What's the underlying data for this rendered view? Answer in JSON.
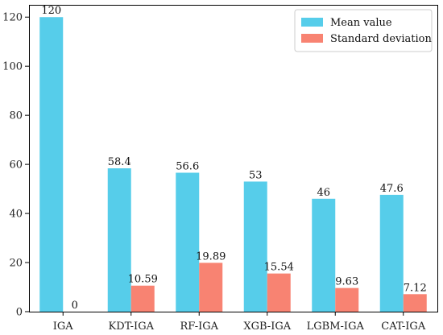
{
  "chart_data": {
    "type": "bar",
    "title": "",
    "xlabel": "",
    "ylabel": "",
    "ylim": [
      0,
      125
    ],
    "yticks": [
      0,
      20,
      40,
      60,
      80,
      100,
      120
    ],
    "grid": false,
    "legend_position": "top-right",
    "categories": [
      "IGA",
      "KDT-IGA",
      "RF-IGA",
      "XGB-IGA",
      "LGBM-IGA",
      "CAT-IGA"
    ],
    "series": [
      {
        "name": "Mean value",
        "color": "#56cdea",
        "values": [
          120,
          58.4,
          56.6,
          53,
          46,
          47.6
        ],
        "labels": [
          "120",
          "58.4",
          "56.6",
          "53",
          "46",
          "47.6"
        ]
      },
      {
        "name": "Standard deviation",
        "color": "#f88372",
        "values": [
          0,
          10.59,
          19.89,
          15.54,
          9.63,
          7.12
        ],
        "labels": [
          "0",
          "10.59",
          "19.89",
          "15.54",
          "9.63",
          "7.12"
        ]
      }
    ]
  }
}
